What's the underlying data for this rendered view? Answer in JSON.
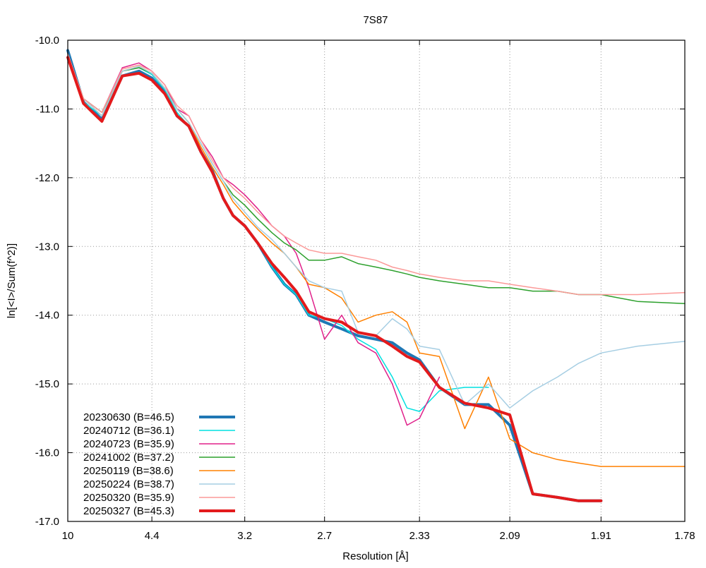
{
  "chart_data": {
    "type": "line",
    "title": "7S87",
    "xlabel": "Resolution [Å]",
    "ylabel": "ln[<I>/Sum(f^2)]",
    "x_scale": "1/d^2",
    "x_ticks": [
      {
        "value": 10,
        "label": "10"
      },
      {
        "value": 4.4,
        "label": "4.4"
      },
      {
        "value": 3.2,
        "label": "3.2"
      },
      {
        "value": 2.7,
        "label": "2.7"
      },
      {
        "value": 2.33,
        "label": "2.33"
      },
      {
        "value": 2.09,
        "label": "2.09"
      },
      {
        "value": 1.91,
        "label": "1.91"
      },
      {
        "value": 1.78,
        "label": "1.78"
      }
    ],
    "y_ticks": [
      {
        "value": -10,
        "label": "-10.0"
      },
      {
        "value": -11,
        "label": "-11.0"
      },
      {
        "value": -12,
        "label": "-12.0"
      },
      {
        "value": -13,
        "label": "-13.0"
      },
      {
        "value": -14,
        "label": "-14.0"
      },
      {
        "value": -15,
        "label": "-15.0"
      },
      {
        "value": -16,
        "label": "-16.0"
      },
      {
        "value": -17,
        "label": "-17.0"
      }
    ],
    "ylim": [
      -17.0,
      -10.0
    ],
    "grid": true,
    "legend_position": "bottom-left",
    "series": [
      {
        "name": "20230630 (B=46.5)",
        "color": "#1f77b4",
        "width": 4,
        "x": [
          10,
          7.5,
          6.1,
          5.2,
          4.7,
          4.4,
          4.15,
          3.95,
          3.78,
          3.63,
          3.5,
          3.39,
          3.3,
          3.2,
          3.1,
          3.0,
          2.92,
          2.85,
          2.78,
          2.7,
          2.62,
          2.55,
          2.48,
          2.42,
          2.37,
          2.33,
          2.27,
          2.2,
          2.14,
          2.09,
          2.04,
          1.99,
          1.95,
          1.91
        ],
        "y": [
          -10.15,
          -10.9,
          -11.15,
          -10.52,
          -10.45,
          -10.55,
          -10.75,
          -11.1,
          -11.25,
          -11.62,
          -11.9,
          -12.3,
          -12.55,
          -12.7,
          -12.95,
          -13.3,
          -13.55,
          -13.7,
          -14.0,
          -14.1,
          -14.2,
          -14.3,
          -14.35,
          -14.4,
          -14.55,
          -14.65,
          -15.05,
          -15.3,
          -15.3,
          -15.6,
          -16.6,
          -16.65,
          -16.7,
          -16.7
        ]
      },
      {
        "name": "20240712 (B=36.1)",
        "color": "#00e0e0",
        "width": 1.5,
        "x": [
          10,
          7.5,
          6.1,
          5.2,
          4.7,
          4.4,
          4.15,
          3.95,
          3.78,
          3.63,
          3.5,
          3.39,
          3.3,
          3.2,
          3.1,
          3.0,
          2.92,
          2.85,
          2.78,
          2.7,
          2.62,
          2.55,
          2.48,
          2.42,
          2.37,
          2.33,
          2.27,
          2.2,
          2.14
        ],
        "y": [
          -10.2,
          -10.9,
          -11.1,
          -10.45,
          -10.4,
          -10.5,
          -10.72,
          -11.05,
          -11.25,
          -11.6,
          -11.95,
          -12.3,
          -12.55,
          -12.72,
          -12.95,
          -13.3,
          -13.55,
          -13.7,
          -14.0,
          -14.05,
          -14.15,
          -14.35,
          -14.5,
          -14.9,
          -15.35,
          -15.4,
          -15.1,
          -15.05,
          -15.05
        ]
      },
      {
        "name": "20240723 (B=35.9)",
        "color": "#e0208a",
        "width": 1.5,
        "x": [
          10,
          7.5,
          6.1,
          5.2,
          4.7,
          4.4,
          4.15,
          3.95,
          3.78,
          3.63,
          3.5,
          3.39,
          3.3,
          3.2,
          3.1,
          3.0,
          2.92,
          2.85,
          2.78,
          2.7,
          2.62,
          2.55,
          2.48,
          2.42,
          2.37,
          2.33,
          2.27
        ],
        "y": [
          -10.2,
          -10.85,
          -11.05,
          -10.4,
          -10.33,
          -10.45,
          -10.65,
          -11.0,
          -11.1,
          -11.45,
          -11.7,
          -12.0,
          -12.1,
          -12.25,
          -12.45,
          -12.7,
          -12.85,
          -13.1,
          -13.6,
          -14.35,
          -14.0,
          -14.4,
          -14.55,
          -15.0,
          -15.6,
          -15.5,
          -14.9
        ]
      },
      {
        "name": "20241002 (B=37.2)",
        "color": "#2ca02c",
        "width": 1.5,
        "x": [
          10,
          7.5,
          6.1,
          5.2,
          4.7,
          4.4,
          4.15,
          3.95,
          3.78,
          3.63,
          3.5,
          3.39,
          3.3,
          3.2,
          3.1,
          3.0,
          2.92,
          2.85,
          2.78,
          2.7,
          2.62,
          2.55,
          2.48,
          2.42,
          2.37,
          2.33,
          2.27,
          2.2,
          2.14,
          2.09,
          2.04,
          1.99,
          1.95,
          1.91,
          1.85,
          1.78
        ],
        "y": [
          -10.2,
          -10.85,
          -11.05,
          -10.45,
          -10.4,
          -10.48,
          -10.7,
          -11.0,
          -11.2,
          -11.5,
          -11.8,
          -12.05,
          -12.25,
          -12.4,
          -12.6,
          -12.8,
          -12.95,
          -13.05,
          -13.2,
          -13.2,
          -13.15,
          -13.25,
          -13.3,
          -13.35,
          -13.4,
          -13.45,
          -13.5,
          -13.55,
          -13.6,
          -13.6,
          -13.65,
          -13.65,
          -13.7,
          -13.7,
          -13.8,
          -13.83
        ]
      },
      {
        "name": "20250119 (B=38.6)",
        "color": "#ff8000",
        "width": 1.5,
        "x": [
          10,
          7.5,
          6.1,
          5.2,
          4.7,
          4.4,
          4.15,
          3.95,
          3.78,
          3.63,
          3.5,
          3.39,
          3.3,
          3.2,
          3.1,
          3.0,
          2.92,
          2.85,
          2.78,
          2.7,
          2.62,
          2.55,
          2.48,
          2.42,
          2.37,
          2.33,
          2.27,
          2.2,
          2.14,
          2.09,
          2.04,
          1.99,
          1.95,
          1.91,
          1.85,
          1.78
        ],
        "y": [
          -10.2,
          -10.85,
          -11.1,
          -10.45,
          -10.38,
          -10.48,
          -10.7,
          -11.0,
          -11.2,
          -11.55,
          -11.85,
          -12.1,
          -12.35,
          -12.55,
          -12.75,
          -12.95,
          -13.1,
          -13.3,
          -13.55,
          -13.6,
          -13.75,
          -14.1,
          -14.0,
          -13.95,
          -14.1,
          -14.55,
          -14.6,
          -15.65,
          -14.9,
          -15.8,
          -16.0,
          -16.1,
          -16.15,
          -16.2,
          -16.2,
          -16.2
        ]
      },
      {
        "name": "20250224 (B=38.7)",
        "color": "#a6cee3",
        "width": 1.5,
        "x": [
          10,
          7.5,
          6.1,
          5.2,
          4.7,
          4.4,
          4.15,
          3.95,
          3.78,
          3.63,
          3.5,
          3.39,
          3.3,
          3.2,
          3.1,
          3.0,
          2.92,
          2.85,
          2.78,
          2.7,
          2.62,
          2.55,
          2.48,
          2.42,
          2.37,
          2.33,
          2.27,
          2.2,
          2.14,
          2.09,
          2.04,
          1.99,
          1.95,
          1.91,
          1.85,
          1.78
        ],
        "y": [
          -10.2,
          -10.85,
          -11.1,
          -10.45,
          -10.38,
          -10.48,
          -10.7,
          -11.0,
          -11.2,
          -11.5,
          -11.8,
          -12.05,
          -12.3,
          -12.5,
          -12.72,
          -12.9,
          -13.1,
          -13.3,
          -13.5,
          -13.6,
          -13.65,
          -14.25,
          -14.3,
          -14.05,
          -14.2,
          -14.45,
          -14.5,
          -15.3,
          -15.0,
          -15.35,
          -15.1,
          -14.9,
          -14.7,
          -14.55,
          -14.45,
          -14.38
        ]
      },
      {
        "name": "20250320 (B=35.9)",
        "color": "#fb9a99",
        "width": 1.5,
        "x": [
          10,
          7.5,
          6.1,
          5.2,
          4.7,
          4.4,
          4.15,
          3.95,
          3.78,
          3.63,
          3.5,
          3.39,
          3.3,
          3.2,
          3.1,
          3.0,
          2.92,
          2.85,
          2.78,
          2.7,
          2.62,
          2.55,
          2.48,
          2.42,
          2.37,
          2.33,
          2.27,
          2.2,
          2.14,
          2.09,
          2.04,
          1.99,
          1.95,
          1.91,
          1.85,
          1.78
        ],
        "y": [
          -10.2,
          -10.85,
          -11.05,
          -10.42,
          -10.36,
          -10.45,
          -10.65,
          -10.95,
          -11.1,
          -11.45,
          -11.75,
          -12.0,
          -12.15,
          -12.3,
          -12.5,
          -12.7,
          -12.85,
          -12.95,
          -13.05,
          -13.1,
          -13.1,
          -13.15,
          -13.2,
          -13.3,
          -13.35,
          -13.4,
          -13.45,
          -13.5,
          -13.5,
          -13.55,
          -13.6,
          -13.65,
          -13.7,
          -13.7,
          -13.7,
          -13.67
        ]
      },
      {
        "name": "20250327 (B=45.3)",
        "color": "#e31a1c",
        "width": 4,
        "x": [
          10,
          7.5,
          6.1,
          5.2,
          4.7,
          4.4,
          4.15,
          3.95,
          3.78,
          3.63,
          3.5,
          3.39,
          3.3,
          3.2,
          3.1,
          3.0,
          2.92,
          2.85,
          2.78,
          2.7,
          2.62,
          2.55,
          2.48,
          2.42,
          2.37,
          2.33,
          2.27,
          2.2,
          2.14,
          2.09,
          2.04,
          1.99,
          1.95,
          1.91
        ],
        "y": [
          -10.25,
          -10.92,
          -11.18,
          -10.52,
          -10.48,
          -10.58,
          -10.78,
          -11.1,
          -11.25,
          -11.62,
          -11.92,
          -12.3,
          -12.55,
          -12.7,
          -12.95,
          -13.25,
          -13.45,
          -13.65,
          -13.95,
          -14.05,
          -14.1,
          -14.25,
          -14.3,
          -14.45,
          -14.6,
          -14.68,
          -15.05,
          -15.28,
          -15.35,
          -15.45,
          -16.6,
          -16.65,
          -16.7,
          -16.7
        ]
      }
    ]
  }
}
